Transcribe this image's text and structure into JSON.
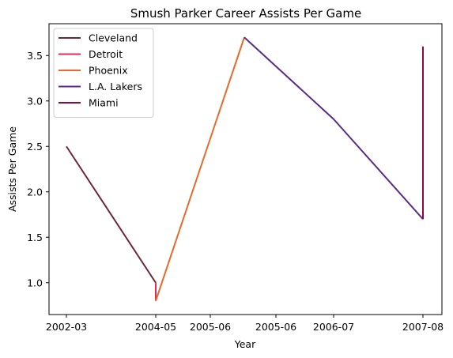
{
  "chart_data": {
    "type": "line",
    "title": "Smush Parker Career Assists Per Game",
    "xlabel": "Year",
    "ylabel": "Assists Per Game",
    "x_tick_labels": [
      "2002-03",
      "2004-05",
      "2005-06",
      "2005-06",
      "2006-07",
      "2007-08"
    ],
    "y_ticks": [
      "1.0",
      "1.5",
      "2.0",
      "2.5",
      "3.0",
      "3.5"
    ],
    "ylim": [
      0.65,
      3.85
    ],
    "legend_position": "upper-left",
    "grid": false,
    "series": [
      {
        "name": "Cleveland",
        "color": "#6b2737",
        "points": [
          {
            "x": 0,
            "y": 2.5
          },
          {
            "x": 1,
            "y": 1.0
          }
        ]
      },
      {
        "name": "Detroit",
        "color": "#e8265e",
        "points": [
          {
            "x": 1,
            "y": 1.0
          },
          {
            "x": 1,
            "y": 0.8
          }
        ]
      },
      {
        "name": "Phoenix",
        "color": "#e56b2a",
        "points": [
          {
            "x": 1,
            "y": 0.8
          },
          {
            "x": 2,
            "y": 3.7
          }
        ]
      },
      {
        "name": "L.A. Lakers",
        "color": "#5b2a86",
        "points": [
          {
            "x": 2,
            "y": 3.7
          },
          {
            "x": 3,
            "y": 2.8
          },
          {
            "x": 4,
            "y": 1.7
          }
        ]
      },
      {
        "name": "Miami",
        "color": "#8b0a3c",
        "points": [
          {
            "x": 4,
            "y": 1.7
          },
          {
            "x": 4,
            "y": 3.6
          }
        ]
      }
    ]
  }
}
